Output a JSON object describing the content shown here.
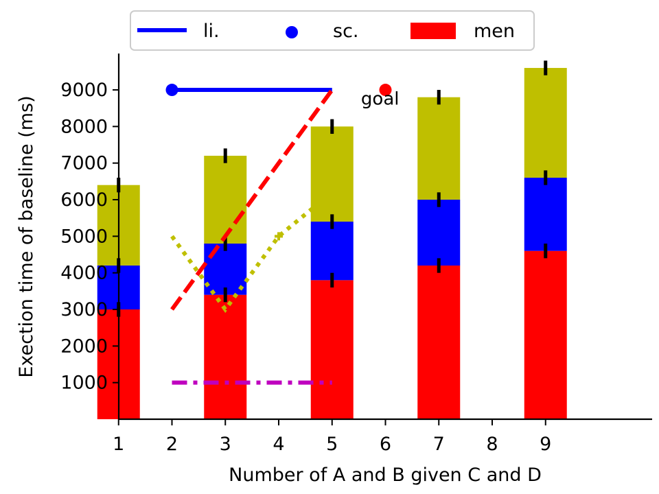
{
  "chart_data": {
    "type": "bar",
    "xlabel": "Number of A and B given C and D",
    "ylabel": "Exection time of baseline (ms)",
    "x_ticks": [
      1,
      2,
      3,
      4,
      5,
      6,
      7,
      8,
      9
    ],
    "y_ticks": [
      1000,
      2000,
      3000,
      4000,
      5000,
      6000,
      7000,
      8000,
      9000
    ],
    "xlim": [
      0.0,
      10.0
    ],
    "ylim": [
      0,
      9900
    ],
    "grid": false,
    "legend_position": "top",
    "legend": [
      {
        "label": "li.",
        "kind": "line",
        "color": "#0000ff"
      },
      {
        "label": "sc.",
        "kind": "marker",
        "color": "#0000ff"
      },
      {
        "label": "men",
        "kind": "patch",
        "color": "#ff0000"
      }
    ],
    "bars": {
      "x": [
        1,
        3,
        5,
        7,
        9
      ],
      "series": [
        {
          "color": "#ff0000",
          "values": [
            3000,
            3400,
            3800,
            4200,
            4600
          ]
        },
        {
          "color": "#0000ff",
          "values": [
            1200,
            1400,
            1600,
            1800,
            2000
          ]
        },
        {
          "color": "#bfbf00",
          "values": [
            2200,
            2400,
            2600,
            2800,
            3000
          ]
        }
      ],
      "error": 200
    },
    "lines": [
      {
        "color": "#0000ff",
        "style": "solid",
        "points": [
          [
            2,
            9000
          ],
          [
            5,
            9000
          ]
        ]
      },
      {
        "color": "#ff0000",
        "style": "dashed",
        "points": [
          [
            2,
            3000
          ],
          [
            5,
            9000
          ]
        ]
      },
      {
        "color": "#bfbf00",
        "style": "dotted",
        "points": [
          [
            2,
            5000
          ],
          [
            3,
            3000
          ],
          [
            4,
            5000
          ],
          [
            5,
            6200
          ]
        ]
      },
      {
        "color": "#bf00bf",
        "style": "dashdot",
        "points": [
          [
            2,
            1000
          ],
          [
            5,
            1000
          ]
        ]
      }
    ],
    "markers": [
      {
        "x": 2,
        "y": 9000,
        "color": "#0000ff"
      },
      {
        "x": 6,
        "y": 9000,
        "color": "#ff0000"
      }
    ],
    "plus_markers": [
      {
        "x": 4,
        "y": 5000,
        "color": "#bfbf00"
      }
    ],
    "annotations": [
      {
        "text": "goal",
        "x": 5.9,
        "y": 8600
      }
    ]
  }
}
